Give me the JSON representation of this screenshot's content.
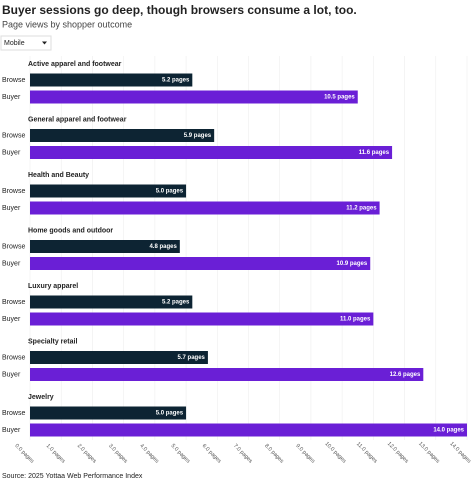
{
  "chart_data": {
    "type": "bar",
    "title": "Buyer sessions go deep, though browsers consume a lot, too.",
    "subtitle": "Page views by shopper outcome",
    "filter": "Mobile",
    "source": "Source: 2025 Yottaa Web Performance Index",
    "categories": [
      "Active apparel and footwear",
      "General apparel and footwear",
      "Health and Beauty",
      "Home goods and outdoor",
      "Luxury apparel",
      "Specialty retail",
      "Jewelry"
    ],
    "series": [
      {
        "name": "Browse",
        "color": "#0d2433",
        "values": [
          5.2,
          5.9,
          5.0,
          4.8,
          5.2,
          5.7,
          5.0
        ],
        "value_labels": [
          "5.2 pages",
          "5.9 pages",
          "5.0 pages",
          "4.8 pages",
          "5.2 pages",
          "5.7 pages",
          "5.0 pages"
        ]
      },
      {
        "name": "Buyer",
        "color": "#6a1fd6",
        "values": [
          10.5,
          11.6,
          11.2,
          10.9,
          11.0,
          12.6,
          14.0
        ],
        "value_labels": [
          "10.5 pages",
          "11.6 pages",
          "11.2 pages",
          "10.9 pages",
          "11.0 pages",
          "12.6 pages",
          "14.0 pages"
        ]
      }
    ],
    "xlim": [
      0,
      14
    ],
    "xticks": [
      {
        "value": 0,
        "label": "0.0 pages"
      },
      {
        "value": 1,
        "label": "1.0 pages"
      },
      {
        "value": 2,
        "label": "2.0 pages"
      },
      {
        "value": 3,
        "label": "3.0 pages"
      },
      {
        "value": 4,
        "label": "4.0 pages"
      },
      {
        "value": 5,
        "label": "5.0 pages"
      },
      {
        "value": 6,
        "label": "6.0 pages"
      },
      {
        "value": 7,
        "label": "7.0 pages"
      },
      {
        "value": 8,
        "label": "8.0 pages"
      },
      {
        "value": 9,
        "label": "9.0 pages"
      },
      {
        "value": 10,
        "label": "10.0 pages"
      },
      {
        "value": 11,
        "label": "11.0 pages"
      },
      {
        "value": 12,
        "label": "12.0 pages"
      },
      {
        "value": 13,
        "label": "13.0 pages"
      },
      {
        "value": 14,
        "label": "14.0 pages"
      }
    ],
    "grid": true
  }
}
